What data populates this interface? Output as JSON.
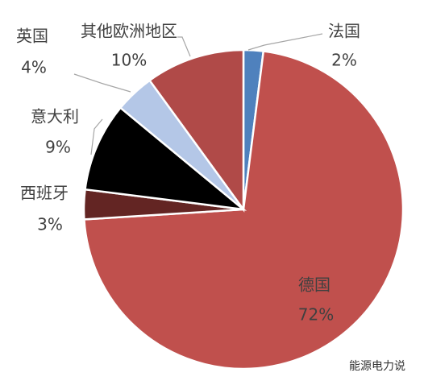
{
  "chart_data": {
    "type": "pie",
    "categories": [
      "法国",
      "德国",
      "西班牙",
      "意大利",
      "英国",
      "其他欧洲地区"
    ],
    "values": [
      2,
      72,
      3,
      9,
      4,
      10
    ],
    "value_labels": [
      "2%",
      "72%",
      "3%",
      "9%",
      "4%",
      "10%"
    ],
    "colors": [
      "#4f81bd",
      "#c0504d",
      "#632523",
      "#000000",
      "#b4c7e7",
      "#b04a48"
    ],
    "watermark": "能源电力说"
  }
}
